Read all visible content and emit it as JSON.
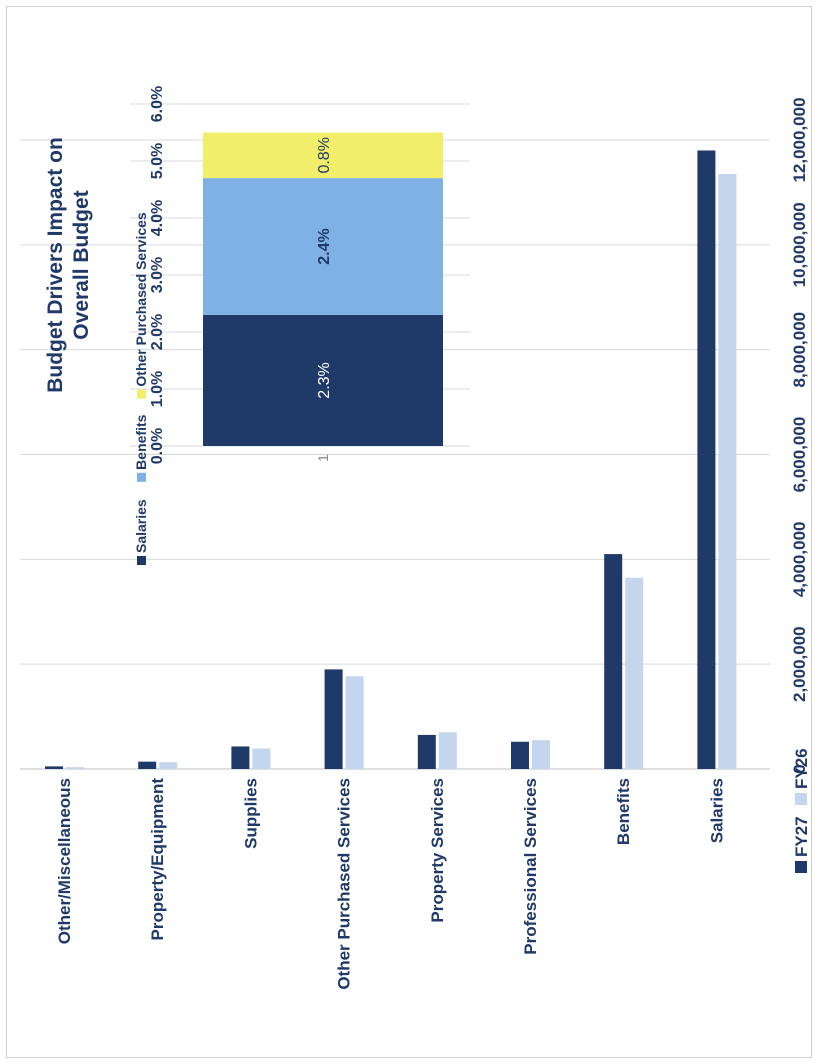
{
  "chart_data": [
    {
      "type": "bar",
      "orientation": "horizontal",
      "categories": [
        "Other/Miscellaneous",
        "Property/Equipment",
        "Supplies",
        "Other Purchased Services",
        "Property Services",
        "Professional Services",
        "Benefits",
        "Salaries"
      ],
      "series": [
        {
          "name": "FY27",
          "values": [
            50000,
            140000,
            430000,
            1900000,
            650000,
            520000,
            4100000,
            11800000
          ]
        },
        {
          "name": "FY26",
          "values": [
            35000,
            130000,
            390000,
            1770000,
            700000,
            550000,
            3650000,
            11350000
          ]
        }
      ],
      "xlim": [
        0,
        12000000
      ],
      "tick_labels": [
        "0",
        "2,000,000",
        "4,000,000",
        "6,000,000",
        "8,000,000",
        "10,000,000",
        "12,000,000"
      ],
      "title": "",
      "xlabel": "",
      "ylabel": "",
      "grid": true,
      "legend_position": "bottom",
      "colors": {
        "FY27": "#1f3a68",
        "FY26": "#c3d6ee"
      }
    },
    {
      "type": "bar",
      "stacked": true,
      "title": "Budget Drivers Impact on Overall Budget",
      "categories": [
        "1"
      ],
      "series": [
        {
          "name": "Salaries",
          "values": [
            2.3
          ],
          "label": "2.3%"
        },
        {
          "name": "Benefits",
          "values": [
            2.4
          ],
          "label": "2.4%"
        },
        {
          "name": "Other Purchased Services",
          "values": [
            0.8
          ],
          "label": "0.8%"
        }
      ],
      "ylim": [
        0,
        6
      ],
      "tick_labels": [
        "0.0%",
        "1.0%",
        "2.0%",
        "3.0%",
        "4.0%",
        "5.0%",
        "6.0%"
      ],
      "grid": true,
      "legend_position": "bottom",
      "colors": {
        "Salaries": "#1f3a68",
        "Benefits": "#7fb1e6",
        "Other Purchased Services": "#f1ee6a"
      }
    }
  ]
}
